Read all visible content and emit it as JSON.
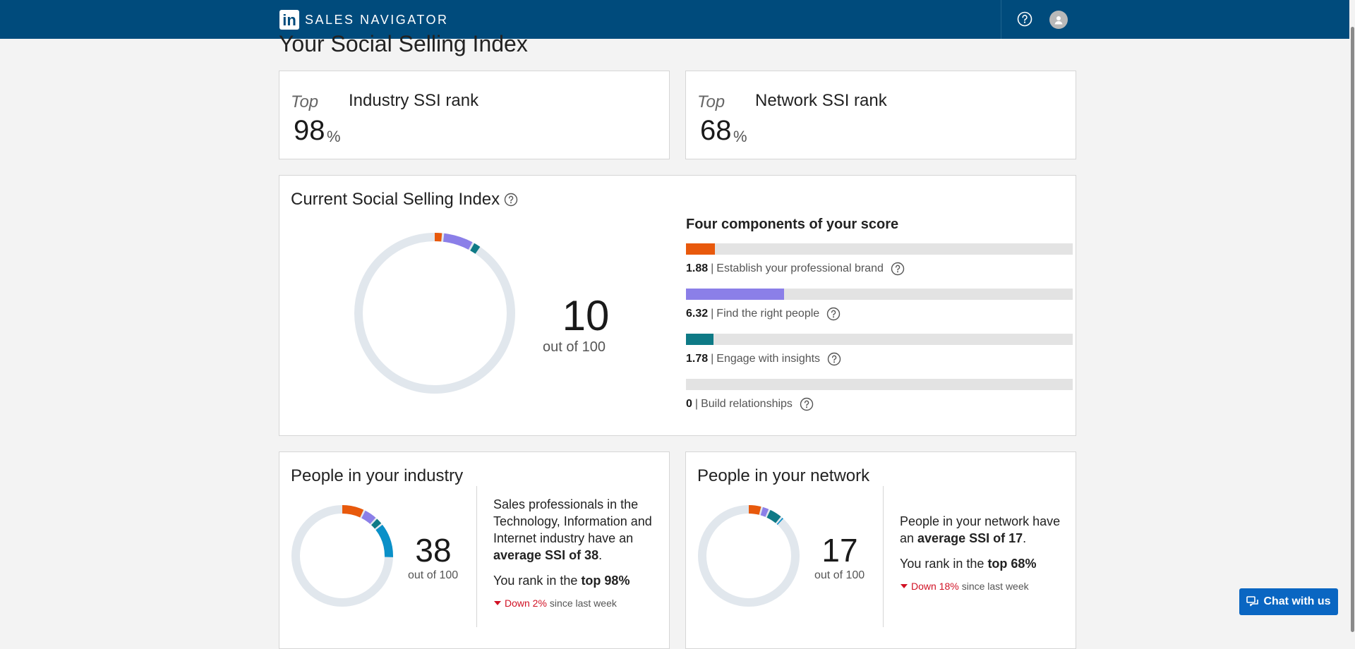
{
  "colors": {
    "nav_bg": "#004b7c",
    "brand_component": "#e8590c",
    "people_component": "#8b7fe8",
    "insights_component": "#0e7a86",
    "relationships_component": "#0a90c8",
    "donut_track": "#e1e7ed",
    "down_red": "#d11124",
    "chat_button": "#0a66c2"
  },
  "nav": {
    "logo_text": "in",
    "brand": "SALES NAVIGATOR",
    "help_icon": "help-circle-icon",
    "avatar_icon": "user-avatar-icon"
  },
  "page": {
    "title": "Your Social Selling Index"
  },
  "industry_rank": {
    "prefix": "Top",
    "title": "Industry SSI rank",
    "value": "98",
    "unit": "%"
  },
  "network_rank": {
    "prefix": "Top",
    "title": "Network SSI rank",
    "value": "68",
    "unit": "%"
  },
  "current_ssi": {
    "title": "Current Social Selling Index",
    "score": "10",
    "out_of": "out of 100",
    "components_title": "Four components of your score",
    "components": [
      {
        "value": "1.88",
        "label": "Establish your professional brand",
        "score": 1.88,
        "max": 25,
        "color": "#e8590c"
      },
      {
        "value": "6.32",
        "label": "Find the right people",
        "score": 6.32,
        "max": 25,
        "color": "#8b7fe8"
      },
      {
        "value": "1.78",
        "label": "Engage with insights",
        "score": 1.78,
        "max": 25,
        "color": "#0e7a86"
      },
      {
        "value": "0",
        "label": "Build relationships",
        "score": 0,
        "max": 25,
        "color": "#0a90c8"
      }
    ]
  },
  "industry_people": {
    "title": "People in your industry",
    "score": "38",
    "out_of": "out of 100",
    "segments": [
      7.5,
      4.5,
      2.5,
      11.5
    ],
    "desc_part1": "Sales professionals in the Technology, Information and Internet industry have an ",
    "desc_bold": "average SSI of 38",
    "desc_end": ".",
    "rank_prefix": "You rank in the ",
    "rank_bold": "top 98%",
    "trend_down": "Down 2%",
    "trend_suffix": "since last week"
  },
  "network_people": {
    "title": "People in your network",
    "score": "17",
    "out_of": "out of 100",
    "segments": [
      4.5,
      2.5,
      4.5,
      1.0
    ],
    "desc_part1": "People in your network have an ",
    "desc_bold": "average SSI of 17",
    "desc_end": ".",
    "rank_prefix": "You rank in the ",
    "rank_bold": "top 68%",
    "trend_down": "Down 18%",
    "trend_suffix": "since last week"
  },
  "chat": {
    "label": "Chat with us",
    "icon": "chat-bubbles-icon"
  }
}
